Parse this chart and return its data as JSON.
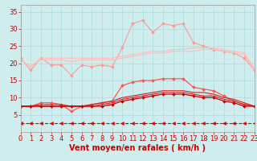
{
  "x": [
    0,
    1,
    2,
    3,
    4,
    5,
    6,
    7,
    8,
    9,
    10,
    11,
    12,
    13,
    14,
    15,
    16,
    17,
    18,
    19,
    20,
    21,
    22,
    23
  ],
  "series": [
    {
      "name": "rafales_max",
      "color": "#ff9999",
      "alpha": 1.0,
      "linewidth": 0.8,
      "marker": "D",
      "markersize": 2.0,
      "linestyle": "-",
      "values": [
        21.5,
        18.0,
        21.5,
        19.5,
        19.5,
        16.5,
        19.5,
        19.0,
        19.5,
        19.0,
        24.5,
        31.5,
        32.5,
        29.0,
        31.5,
        31.0,
        31.5,
        26.0,
        25.0,
        24.0,
        23.5,
        23.0,
        21.5,
        18.0
      ]
    },
    {
      "name": "rafales_moy_high",
      "color": "#ffbbbb",
      "alpha": 1.0,
      "linewidth": 0.8,
      "marker": null,
      "markersize": 0,
      "linestyle": "-",
      "values": [
        21.0,
        19.0,
        21.5,
        21.5,
        21.5,
        21.5,
        21.5,
        21.5,
        21.5,
        21.5,
        22.0,
        22.5,
        23.0,
        23.5,
        23.5,
        24.0,
        24.0,
        24.5,
        24.5,
        24.5,
        24.0,
        23.5,
        23.0,
        18.5
      ]
    },
    {
      "name": "rafales_moy_low",
      "color": "#ffbbbb",
      "alpha": 1.0,
      "linewidth": 0.8,
      "marker": null,
      "markersize": 0,
      "linestyle": "-",
      "values": [
        21.0,
        19.0,
        21.0,
        21.0,
        21.0,
        20.5,
        21.0,
        21.0,
        21.0,
        21.0,
        21.5,
        22.0,
        22.5,
        23.0,
        23.0,
        23.5,
        23.5,
        23.5,
        24.0,
        24.0,
        23.5,
        23.0,
        22.5,
        18.0
      ]
    },
    {
      "name": "vent_max",
      "color": "#ff5555",
      "alpha": 1.0,
      "linewidth": 0.9,
      "marker": "D",
      "markersize": 2.0,
      "linestyle": "-",
      "values": [
        7.5,
        7.5,
        8.5,
        8.5,
        8.0,
        6.0,
        7.5,
        8.0,
        8.5,
        9.0,
        13.5,
        14.5,
        15.0,
        15.0,
        15.5,
        15.5,
        15.5,
        13.0,
        12.5,
        12.0,
        10.5,
        9.0,
        8.0,
        7.5
      ]
    },
    {
      "name": "vent_moy_high",
      "color": "#cc2222",
      "alpha": 1.0,
      "linewidth": 0.8,
      "marker": null,
      "markersize": 0,
      "linestyle": "-",
      "values": [
        7.5,
        7.5,
        8.0,
        8.0,
        8.0,
        7.5,
        7.5,
        8.0,
        8.5,
        9.0,
        10.0,
        10.5,
        11.0,
        11.5,
        12.0,
        12.0,
        12.0,
        11.5,
        11.5,
        11.0,
        10.0,
        9.5,
        8.5,
        7.5
      ]
    },
    {
      "name": "vent_moy_low",
      "color": "#cc2222",
      "alpha": 1.0,
      "linewidth": 0.8,
      "marker": null,
      "markersize": 0,
      "linestyle": "-",
      "values": [
        7.5,
        7.5,
        7.5,
        7.5,
        7.5,
        7.5,
        7.5,
        7.5,
        8.0,
        8.5,
        9.5,
        10.0,
        10.5,
        11.0,
        11.5,
        11.5,
        11.5,
        11.0,
        10.5,
        10.5,
        9.5,
        9.0,
        8.0,
        7.5
      ]
    },
    {
      "name": "vent_min",
      "color": "#cc0000",
      "alpha": 1.0,
      "linewidth": 0.9,
      "marker": "D",
      "markersize": 2.0,
      "linestyle": "-",
      "values": [
        7.5,
        7.5,
        7.5,
        7.5,
        7.5,
        7.5,
        7.5,
        7.5,
        7.5,
        8.0,
        9.0,
        9.5,
        10.0,
        10.5,
        11.0,
        11.0,
        11.0,
        10.5,
        10.0,
        10.0,
        9.0,
        8.5,
        7.5,
        7.5
      ]
    },
    {
      "name": "dashed_bottom",
      "color": "#dd0000",
      "alpha": 1.0,
      "linewidth": 0.8,
      "marker": "<",
      "markersize": 3.0,
      "linestyle": "--",
      "values": [
        2.5,
        2.5,
        2.5,
        2.5,
        2.5,
        2.5,
        2.5,
        2.5,
        2.5,
        2.5,
        2.5,
        2.5,
        2.5,
        2.5,
        2.5,
        2.5,
        2.5,
        2.5,
        2.5,
        2.5,
        2.5,
        2.5,
        2.5,
        2.5
      ]
    }
  ],
  "xlabel": "Vent moyen/en rafales ( km/h )",
  "xlim": [
    0,
    23
  ],
  "ylim": [
    0,
    37
  ],
  "yticks": [
    5,
    10,
    15,
    20,
    25,
    30,
    35
  ],
  "xticks": [
    0,
    1,
    2,
    3,
    4,
    5,
    6,
    7,
    8,
    9,
    10,
    11,
    12,
    13,
    14,
    15,
    16,
    17,
    18,
    19,
    20,
    21,
    22,
    23
  ],
  "grid_color": "#aadddd",
  "bg_color": "#d0eded",
  "tick_color": "#cc0000",
  "label_color": "#cc0000",
  "label_fontsize": 7,
  "tick_fontsize": 6
}
